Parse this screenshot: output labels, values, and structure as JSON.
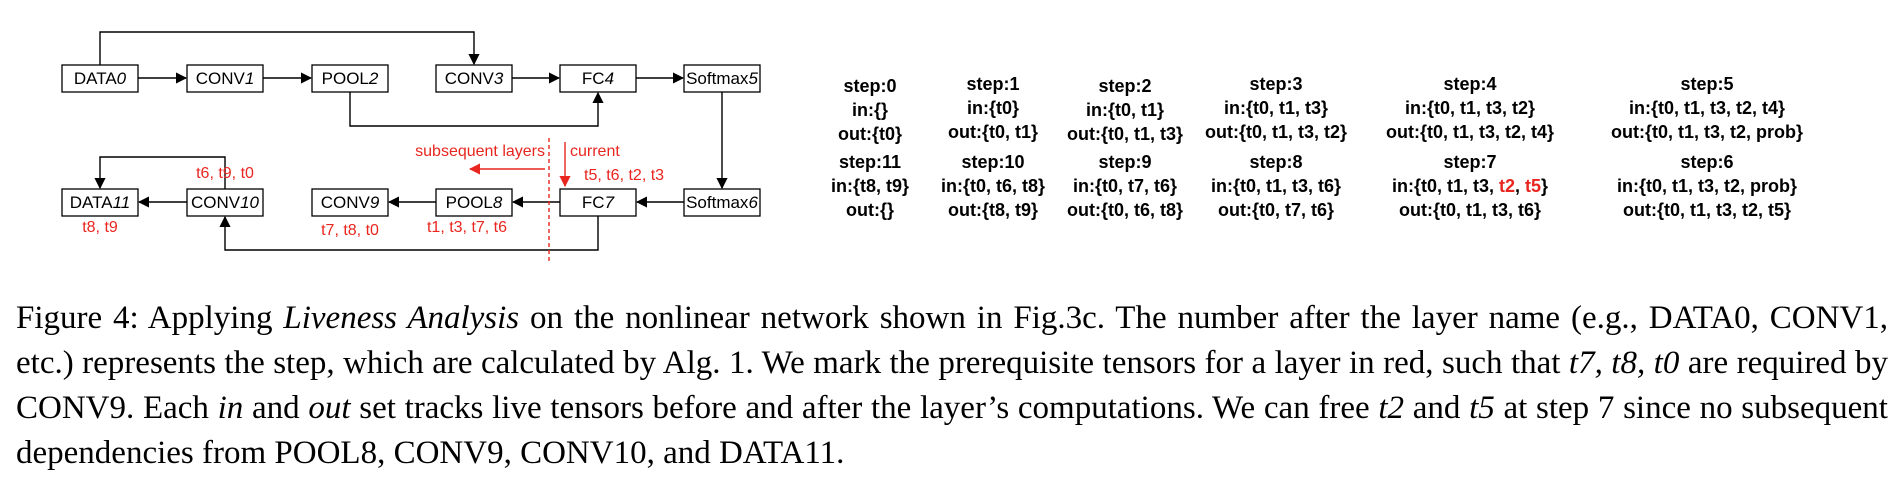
{
  "diagram": {
    "layers": {
      "data0": {
        "name": "DATA",
        "step": "0"
      },
      "conv1": {
        "name": "CONV",
        "step": "1"
      },
      "pool2": {
        "name": "POOL",
        "step": "2"
      },
      "conv3": {
        "name": "CONV",
        "step": "3"
      },
      "fc4": {
        "name": "FC",
        "step": "4"
      },
      "softmax5": {
        "name": "Softmax",
        "step": "5"
      },
      "softmax6": {
        "name": "Softmax",
        "step": "6"
      },
      "fc7": {
        "name": "FC",
        "step": "7"
      },
      "pool8": {
        "name": "POOL",
        "step": "8"
      },
      "conv9": {
        "name": "CONV",
        "step": "9"
      },
      "conv10": {
        "name": "CONV",
        "step": "10"
      },
      "data11": {
        "name": "DATA",
        "step": "11"
      }
    },
    "labels": {
      "subsequent_layers": "subsequent layers",
      "current": "current",
      "fc7_deps": "t5, t6, t2, t3",
      "pool8_deps": "t1, t3, t7, t6",
      "conv9_deps": "t7, t8, t0",
      "conv10_deps": "t6, t9, t0",
      "data11_deps": "t8, t9"
    }
  },
  "steps": [
    {
      "label": "step:0",
      "in": "in:{}",
      "out": "out:{t0}"
    },
    {
      "label": "step:1",
      "in": "in:{t0}",
      "out": "out:{t0, t1}"
    },
    {
      "label": "step:2",
      "in": "in:{t0, t1}",
      "out": "out:{t0, t1, t3}"
    },
    {
      "label": "step:3",
      "in": "in:{t0, t1, t3}",
      "out": "out:{t0, t1, t3, t2}"
    },
    {
      "label": "step:4",
      "in": "in:{t0, t1, t3, t2}",
      "out": "out:{t0, t1, t3, t2, t4}"
    },
    {
      "label": "step:5",
      "in": "in:{t0, t1, t3, t2, t4}",
      "out": "out:{t0, t1, t3, t2, prob}"
    },
    {
      "label": "step:11",
      "in": "in:{t8, t9}",
      "out": "out:{}"
    },
    {
      "label": "step:10",
      "in": "in:{t0, t6, t8}",
      "out": "out:{t8, t9}"
    },
    {
      "label": "step:9",
      "in": "in:{t0, t7, t6}",
      "out": "out:{t0, t6, t8}"
    },
    {
      "label": "step:8",
      "in": "in:{t0, t1, t3, t6}",
      "out": "out:{t0, t7, t6}"
    },
    {
      "label": "step:7",
      "in_prefix": "in:{t0, t1, t3, ",
      "in_hl1": "t2",
      "in_sep": ", ",
      "in_hl2": "t5",
      "in_suffix": "}",
      "out": "out:{t0, t1, t3, t6}"
    },
    {
      "label": "step:6",
      "in": "in:{t0, t1, t3, t2, prob}",
      "out": "out:{t0, t1, t3, t2, t5}"
    }
  ],
  "caption": {
    "figure_label": "Figure 4: Applying ",
    "title_italic": "Liveness Analysis",
    "text1": " on the nonlinear network shown in Fig.3c. The number after the layer name (e.g., DATA0, CONV1, etc.) represents the step, which are calculated by Alg. 1. We mark the prerequisite tensors for a layer in red, such that ",
    "math_tensors": "t7, t8, t0",
    "text2": " are required by CONV9. Each ",
    "math_in": "in",
    "text3": " and ",
    "math_out": "out",
    "text4": " set tracks live tensors before and after the layer’s computations. We can free ",
    "math_t2": "t2",
    "text5": " and ",
    "math_t5": "t5",
    "text6": " at step 7 since no subsequent dependencies from POOL8, CONV9, CONV10, and DATA11."
  },
  "colors": {
    "highlight": "#e8261f",
    "text": "#000000"
  }
}
